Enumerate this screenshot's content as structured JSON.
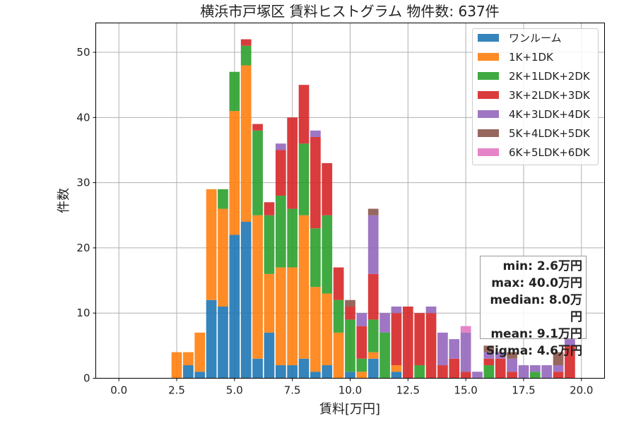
{
  "chart_data": {
    "type": "bar",
    "stacked": true,
    "title": "横浜市戸塚区 賃料ヒストグラム  物件数: 637件",
    "xlabel": "賃料[万円]",
    "ylabel": "件数",
    "xlim": [
      -1,
      21
    ],
    "ylim": [
      0,
      54.5
    ],
    "xticks": [
      "0.0",
      "2.5",
      "5.0",
      "7.5",
      "10.0",
      "12.5",
      "15.0",
      "17.5",
      "20.0"
    ],
    "yticks": [
      "0",
      "10",
      "20",
      "30",
      "40",
      "50"
    ],
    "grid": true,
    "legend_position": "top-right",
    "bin_width": 0.5,
    "bins": [
      2.5,
      3.0,
      3.5,
      4.0,
      4.5,
      5.0,
      5.5,
      6.0,
      6.5,
      7.0,
      7.5,
      8.0,
      8.5,
      9.0,
      9.5,
      10.0,
      10.5,
      11.0,
      11.5,
      12.0,
      12.5,
      13.0,
      13.5,
      14.0,
      14.5,
      15.0,
      15.5,
      16.0,
      16.5,
      17.0,
      17.5,
      18.0,
      18.5,
      19.0,
      19.5
    ],
    "series": [
      {
        "name": "ワンルーム",
        "color": "#1f77b4",
        "values": [
          0,
          2,
          1,
          12,
          11,
          22,
          24,
          3,
          7,
          2,
          2,
          3,
          1,
          2,
          0,
          1,
          0,
          3,
          0,
          1,
          0,
          0,
          0,
          0,
          0,
          0,
          0,
          0,
          0,
          0,
          0,
          0,
          0,
          0,
          0
        ]
      },
      {
        "name": "1K+1DK",
        "color": "#ff7f0e",
        "values": [
          4,
          2,
          6,
          17,
          15,
          19,
          24,
          22,
          9,
          15,
          15,
          22,
          13,
          11,
          7,
          0,
          1,
          1,
          0,
          1,
          0,
          0,
          0,
          0,
          0,
          0,
          0,
          0,
          0,
          0,
          0,
          0,
          0,
          0,
          0
        ]
      },
      {
        "name": "2K+1LDK+2DK",
        "color": "#2ca02c",
        "values": [
          0,
          0,
          0,
          0,
          3,
          6,
          3,
          13,
          9,
          11,
          9,
          11,
          9,
          12,
          5,
          8,
          2,
          5,
          7,
          0,
          0,
          2,
          0,
          0,
          0,
          0,
          0,
          2,
          0,
          0,
          0,
          1,
          0,
          0,
          0
        ]
      },
      {
        "name": "3K+2LDK+3DK",
        "color": "#d62728",
        "values": [
          0,
          0,
          0,
          0,
          0,
          0,
          1,
          1,
          2,
          7,
          14,
          9,
          14,
          8,
          5,
          2,
          5,
          7,
          0,
          8,
          11,
          8,
          10,
          2,
          3,
          1,
          0,
          1,
          3,
          1,
          0,
          0,
          0,
          1,
          5
        ]
      },
      {
        "name": "4K+3LDK+4DK",
        "color": "#9467bd",
        "values": [
          0,
          0,
          0,
          0,
          0,
          0,
          0,
          0,
          0,
          1,
          0,
          0,
          1,
          0,
          0,
          0,
          2,
          9,
          3,
          1,
          0,
          0,
          1,
          5,
          3,
          6,
          1,
          1,
          1,
          2,
          2,
          1,
          2,
          1,
          1
        ]
      },
      {
        "name": "5K+4LDK+5DK",
        "color": "#8c564b",
        "values": [
          0,
          0,
          0,
          0,
          0,
          0,
          0,
          0,
          0,
          0,
          0,
          0,
          0,
          0,
          0,
          1,
          0,
          1,
          0,
          0,
          0,
          0,
          0,
          0,
          0,
          0,
          0,
          1,
          0,
          1,
          0,
          0,
          0,
          2,
          0
        ]
      },
      {
        "name": "6K+5LDK+6DK",
        "color": "#e377c2",
        "values": [
          0,
          0,
          0,
          0,
          0,
          0,
          0,
          0,
          0,
          0,
          0,
          0,
          0,
          0,
          0,
          0,
          0,
          0,
          0,
          0,
          0,
          0,
          0,
          0,
          0,
          1,
          0,
          0,
          0,
          0,
          0,
          0,
          0,
          0,
          0
        ]
      }
    ],
    "stats": [
      "min: 2.6万円",
      "max: 40.0万円",
      "median: 8.0万円",
      "mean: 9.1万円",
      "Sigma: 4.6万円"
    ]
  }
}
